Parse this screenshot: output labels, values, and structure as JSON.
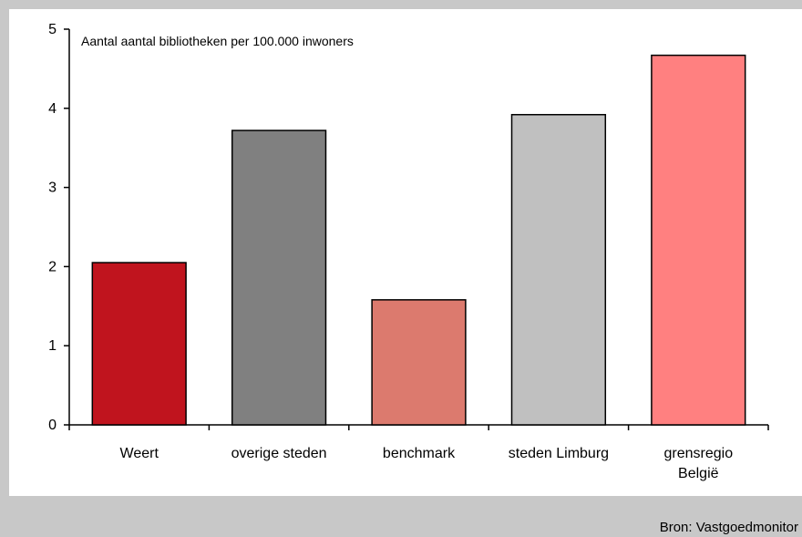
{
  "source_text": "Bron: Vastgoedmonitor",
  "chart_data": {
    "type": "bar",
    "title": "",
    "annotation": "Aantal aantal bibliotheken per 100.000 inwoners",
    "categories": [
      "Weert",
      "overige steden",
      "benchmark",
      "steden Limburg",
      "grensregio België"
    ],
    "category_lines": [
      [
        "Weert"
      ],
      [
        "overige steden"
      ],
      [
        "benchmark"
      ],
      [
        "steden Limburg"
      ],
      [
        "grensregio",
        "België"
      ]
    ],
    "values": [
      2.05,
      3.72,
      1.58,
      3.92,
      4.67
    ],
    "colors": [
      "#c0141e",
      "#808080",
      "#dc7a6e",
      "#c0c0c0",
      "#ff8080"
    ],
    "ylim": [
      0,
      5
    ],
    "yticks": [
      0,
      1,
      2,
      3,
      4,
      5
    ],
    "xlabel": "",
    "ylabel": "",
    "grid": false,
    "legend": "none"
  }
}
